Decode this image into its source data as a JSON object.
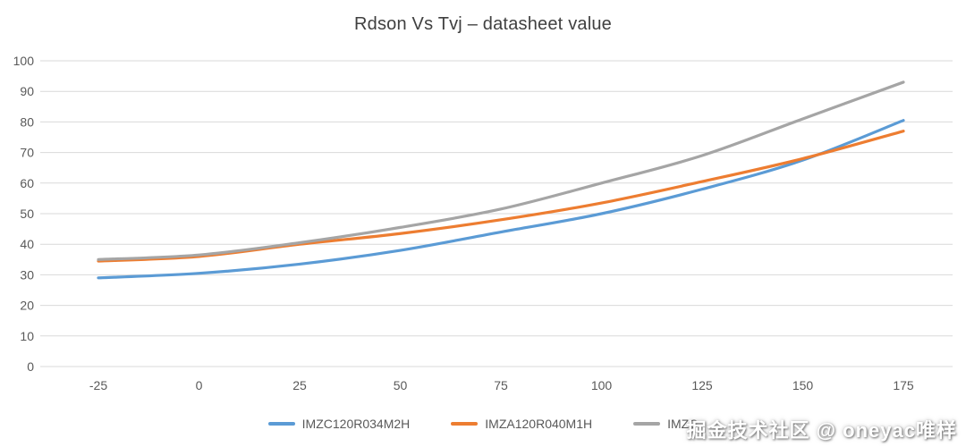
{
  "chart_data": {
    "type": "line",
    "title": "Rdson Vs Tvj – datasheet value",
    "xlabel": "",
    "ylabel": "",
    "x": [
      -25,
      0,
      25,
      50,
      75,
      100,
      125,
      150,
      175
    ],
    "x_ticklabels": [
      "-25",
      "0",
      "25",
      "50",
      "75",
      "100",
      "125",
      "150",
      "175"
    ],
    "ylim": [
      0,
      100
    ],
    "ytick_step": 10,
    "grid": "horizontal",
    "legend_position": "bottom",
    "series": [
      {
        "name": "IMZC120R034M2H",
        "color": "#5B9BD5",
        "values": [
          29,
          30.5,
          33.5,
          38,
          44,
          50,
          58,
          67.5,
          80.5
        ]
      },
      {
        "name": "IMZA120R040M1H",
        "color": "#ED7D31",
        "values": [
          34.5,
          36,
          40,
          43.5,
          48,
          53.5,
          60.5,
          68,
          77
        ]
      },
      {
        "name": "IMZC",
        "color": "#A5A5A5",
        "values": [
          35,
          36.5,
          40.5,
          45.5,
          51.5,
          60,
          69,
          81,
          93
        ]
      }
    ]
  },
  "styles": {
    "gridline_color": "#D9D9D9",
    "tick_label_color": "#595959",
    "title_color": "#404040"
  },
  "watermark": "掘金技术社区 @ oneyac唯样"
}
